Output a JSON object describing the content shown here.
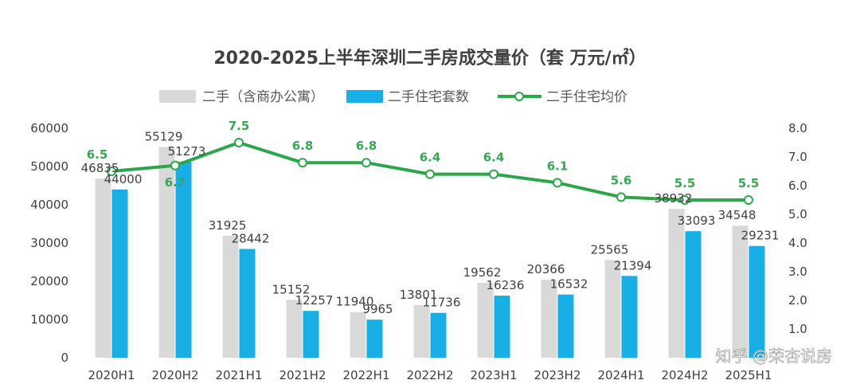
{
  "chart_data": {
    "type": "bar",
    "title": "2020-2025上半年深圳二手房成交量价（套 万元/㎡）",
    "categories": [
      "2020H1",
      "2020H2",
      "2021H1",
      "2021H2",
      "2022H1",
      "2022H2",
      "2023H1",
      "2023H2",
      "2024H1",
      "2024H2",
      "2025H1"
    ],
    "series": [
      {
        "name": "二手（含商办公寓）",
        "kind": "bar",
        "axis": "left",
        "color": "#d9d9d9",
        "values": [
          46835,
          55129,
          31925,
          15152,
          11940,
          13801,
          19562,
          20366,
          25565,
          38932,
          34548
        ]
      },
      {
        "name": "二手住宅套数",
        "kind": "bar",
        "axis": "left",
        "color": "#1aaee6",
        "values": [
          44000,
          51273,
          28442,
          12257,
          9965,
          11736,
          16236,
          16532,
          21394,
          33093,
          29231
        ]
      },
      {
        "name": "二手住宅均价",
        "kind": "line",
        "axis": "right",
        "color": "#2ca54c",
        "values": [
          6.5,
          6.7,
          7.5,
          6.8,
          6.8,
          6.4,
          6.4,
          6.1,
          5.6,
          5.5,
          5.5
        ]
      }
    ],
    "left_axis": {
      "min": 0,
      "max": 60000,
      "ticks": [
        "0",
        "10000",
        "20000",
        "30000",
        "40000",
        "50000",
        "60000"
      ]
    },
    "right_axis": {
      "min": 0,
      "max": 8,
      "ticks": [
        "1.0",
        "2.0",
        "3.0",
        "4.0",
        "5.0",
        "6.0",
        "7.0",
        "8.0"
      ]
    },
    "legend_position": "top",
    "grid": false
  },
  "watermark": {
    "text": "知乎 @荣杏说房"
  }
}
